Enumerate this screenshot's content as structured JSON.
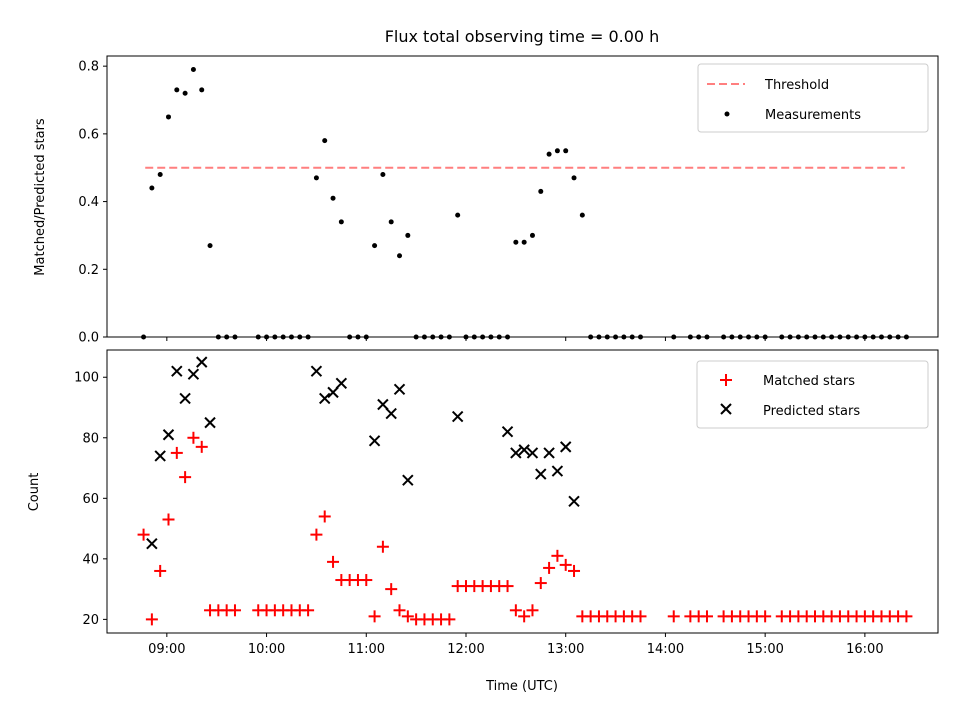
{
  "colors": {
    "threshold": "#ff7f7f",
    "measurements": "#000000",
    "matched": "#ff0000",
    "predicted": "#000000"
  },
  "chart_data": [
    {
      "type": "scatter",
      "title": "Flux total observing time = 0.00 h",
      "ylabel": "Matched/Predicted stars",
      "xlabel": "",
      "xlim": [
        "08:24",
        "16:44"
      ],
      "ylim": [
        0,
        0.83
      ],
      "yticks": [
        0.0,
        0.2,
        0.4,
        0.6,
        0.8
      ],
      "ytick_labels": [
        "0.0",
        "0.2",
        "0.4",
        "0.6",
        "0.8"
      ],
      "xticks": [
        "09:00",
        "10:00",
        "11:00",
        "12:00",
        "13:00",
        "14:00",
        "15:00",
        "16:00"
      ],
      "show_xtick_labels": false,
      "grid": false,
      "legend": {
        "placement": "upper right",
        "entries": [
          "Threshold",
          "Measurements"
        ]
      },
      "series": [
        {
          "name": "Threshold",
          "kind": "dashed-line",
          "x": [
            "08:47",
            "16:24"
          ],
          "y": [
            0.5,
            0.5
          ]
        },
        {
          "name": "Measurements",
          "kind": "dots",
          "x": [
            "08:46",
            "08:51",
            "08:56",
            "09:01",
            "09:06",
            "09:11",
            "09:16",
            "09:21",
            "09:26",
            "09:31",
            "09:36",
            "09:41",
            "09:55",
            "10:00",
            "10:05",
            "10:10",
            "10:15",
            "10:20",
            "10:25",
            "10:30",
            "10:35",
            "10:40",
            "10:45",
            "10:50",
            "10:55",
            "11:00",
            "11:05",
            "11:10",
            "11:15",
            "11:20",
            "11:25",
            "11:30",
            "11:35",
            "11:40",
            "11:45",
            "11:50",
            "11:55",
            "12:00",
            "12:05",
            "12:10",
            "12:15",
            "12:20",
            "12:25",
            "12:30",
            "12:35",
            "12:40",
            "12:45",
            "12:50",
            "12:55",
            "13:00",
            "13:05",
            "13:10",
            "13:15",
            "13:20",
            "13:25",
            "13:30",
            "13:35",
            "13:40",
            "13:45",
            "14:05",
            "14:15",
            "14:20",
            "14:25",
            "14:35",
            "14:40",
            "14:45",
            "14:50",
            "14:55",
            "15:00",
            "15:10",
            "15:15",
            "15:20",
            "15:25",
            "15:30",
            "15:35",
            "15:40",
            "15:45",
            "15:50",
            "15:55",
            "16:00",
            "16:05",
            "16:10",
            "16:15",
            "16:20",
            "16:25"
          ],
          "y": [
            0.0,
            0.44,
            0.48,
            0.65,
            0.73,
            0.72,
            0.79,
            0.73,
            0.27,
            0.0,
            0.0,
            0.0,
            0.0,
            0.0,
            0.0,
            0.0,
            0.0,
            0.0,
            0.0,
            0.47,
            0.58,
            0.41,
            0.34,
            0.0,
            0.0,
            0.0,
            0.27,
            0.48,
            0.34,
            0.24,
            0.3,
            0.0,
            0.0,
            0.0,
            0.0,
            0.0,
            0.36,
            0.0,
            0.0,
            0.0,
            0.0,
            0.0,
            0.0,
            0.28,
            0.28,
            0.3,
            0.43,
            0.54,
            0.55,
            0.55,
            0.47,
            0.36,
            0.0,
            0.0,
            0.0,
            0.0,
            0.0,
            0.0,
            0.0,
            0.0,
            0.0,
            0.0,
            0.0,
            0.0,
            0.0,
            0.0,
            0.0,
            0.0,
            0.0,
            0.0,
            0.0,
            0.0,
            0.0,
            0.0,
            0.0,
            0.0,
            0.0,
            0.0,
            0.0,
            0.0,
            0.0,
            0.0,
            0.0,
            0.0,
            0.0
          ]
        }
      ]
    },
    {
      "type": "scatter",
      "title": "",
      "ylabel": "Count",
      "xlabel": "Time (UTC)",
      "xlim": [
        "08:24",
        "16:44"
      ],
      "ylim": [
        15.5,
        109
      ],
      "yticks": [
        20,
        40,
        60,
        80,
        100
      ],
      "ytick_labels": [
        "20",
        "40",
        "60",
        "80",
        "100"
      ],
      "xticks": [
        "09:00",
        "10:00",
        "11:00",
        "12:00",
        "13:00",
        "14:00",
        "15:00",
        "16:00"
      ],
      "xtick_labels": [
        "09:00",
        "10:00",
        "11:00",
        "12:00",
        "13:00",
        "14:00",
        "15:00",
        "16:00"
      ],
      "show_xtick_labels": true,
      "grid": false,
      "legend": {
        "placement": "upper right",
        "entries": [
          "Matched stars",
          "Predicted stars"
        ]
      },
      "series": [
        {
          "name": "Matched stars",
          "kind": "plus",
          "x": [
            "08:46",
            "08:51",
            "08:56",
            "09:01",
            "09:06",
            "09:11",
            "09:16",
            "09:21",
            "09:26",
            "09:31",
            "09:36",
            "09:41",
            "09:55",
            "10:00",
            "10:05",
            "10:10",
            "10:15",
            "10:20",
            "10:25",
            "10:30",
            "10:35",
            "10:40",
            "10:45",
            "10:50",
            "10:55",
            "11:00",
            "11:05",
            "11:10",
            "11:15",
            "11:20",
            "11:25",
            "11:30",
            "11:35",
            "11:40",
            "11:45",
            "11:50",
            "11:55",
            "12:00",
            "12:05",
            "12:10",
            "12:15",
            "12:20",
            "12:25",
            "12:30",
            "12:35",
            "12:40",
            "12:45",
            "12:50",
            "12:55",
            "13:00",
            "13:05",
            "13:10",
            "13:15",
            "13:20",
            "13:25",
            "13:30",
            "13:35",
            "13:40",
            "13:45",
            "14:05",
            "14:15",
            "14:20",
            "14:25",
            "14:35",
            "14:40",
            "14:45",
            "14:50",
            "14:55",
            "15:00",
            "15:10",
            "15:15",
            "15:20",
            "15:25",
            "15:30",
            "15:35",
            "15:40",
            "15:45",
            "15:50",
            "15:55",
            "16:00",
            "16:05",
            "16:10",
            "16:15",
            "16:20",
            "16:25"
          ],
          "y": [
            48,
            20,
            36,
            53,
            75,
            67,
            80,
            77,
            23,
            23,
            23,
            23,
            23,
            23,
            23,
            23,
            23,
            23,
            23,
            48,
            54,
            39,
            33,
            33,
            33,
            33,
            21,
            44,
            30,
            23,
            21,
            20,
            20,
            20,
            20,
            20,
            31,
            31,
            31,
            31,
            31,
            31,
            31,
            23,
            21,
            23,
            32,
            37,
            41,
            38,
            36,
            21,
            21,
            21,
            21,
            21,
            21,
            21,
            21,
            21,
            21,
            21,
            21,
            21,
            21,
            21,
            21,
            21,
            21,
            21,
            21,
            21,
            21,
            21,
            21,
            21,
            21,
            21,
            21,
            21,
            21,
            21,
            21,
            21,
            21
          ]
        },
        {
          "name": "Predicted stars",
          "kind": "x",
          "x": [
            "08:51",
            "08:56",
            "09:01",
            "09:06",
            "09:11",
            "09:16",
            "09:21",
            "09:26",
            "10:30",
            "10:35",
            "10:40",
            "10:45",
            "11:05",
            "11:10",
            "11:15",
            "11:20",
            "11:25",
            "11:55",
            "12:25",
            "12:30",
            "12:35",
            "12:40",
            "12:45",
            "12:50",
            "12:55",
            "13:00",
            "13:05"
          ],
          "y": [
            45,
            74,
            81,
            102,
            93,
            101,
            105,
            85,
            102,
            93,
            95,
            98,
            79,
            91,
            88,
            96,
            66,
            87,
            82,
            75,
            76,
            75,
            68,
            75,
            69,
            77,
            59
          ]
        }
      ]
    }
  ]
}
